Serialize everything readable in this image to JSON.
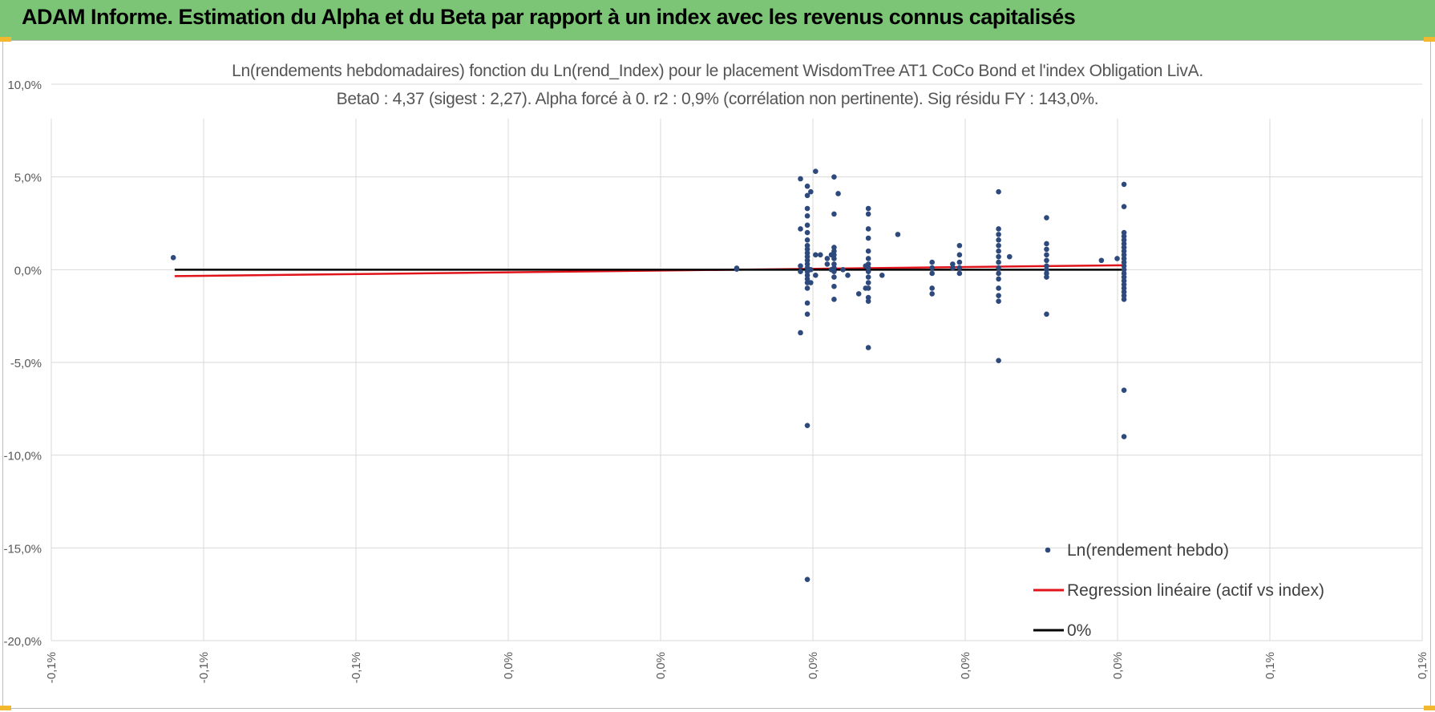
{
  "header": {
    "title": "ADAM Informe. Estimation du Alpha et du Beta par rapport à un index avec les revenus connus capitalisés"
  },
  "colors": {
    "banner": "#7cc576",
    "points": "#2e4a7d",
    "regression": "#e0141a",
    "zero_line": "#000000",
    "grid": "#d9d9d9",
    "accent": "#f2b830"
  },
  "chart_data": {
    "type": "scatter",
    "title": "Ln(rendements hebdomadaires) fonction du Ln(rend_Index) pour le placement WisdomTree AT1  CoCo Bond  et l'index Obligation LivA.",
    "subtitle": "Beta0 : 4,37  (sigest : 2,27). Alpha forcé à 0. r2 : 0,9% (corrélation non pertinente). Sig résidu FY : 143,0%.",
    "xlabel": "",
    "ylabel": "",
    "xlim": [
      -0.001,
      0.001
    ],
    "ylim": [
      -0.2,
      0.1
    ],
    "grid": true,
    "legend_position": "bottom-right",
    "x_tick_labels": [
      "-0,1%",
      "-0,1%",
      "-0,1%",
      "0,0%",
      "0,0%",
      "0,0%",
      "0,0%",
      "0,0%",
      "0,1%",
      "0,1%"
    ],
    "y_tick_labels": [
      "10,0%",
      "5,0%",
      "0,0%",
      "-5,0%",
      "-10,0%",
      "-15,0%",
      "-20,0%"
    ],
    "series": [
      {
        "name": "Ln(rendement hebdo)",
        "type": "scatter",
        "points": [
          [
            -0.000822,
            0.0065
          ],
          [
            0.0,
            0.0008
          ],
          [
            0.0,
            0.0003
          ],
          [
            9.3e-05,
            0.049
          ],
          [
            9.3e-05,
            0.022
          ],
          [
            9.3e-05,
            0.002
          ],
          [
            9.3e-05,
            -0.001
          ],
          [
            9.3e-05,
            -0.034
          ],
          [
            0.000103,
            0.045
          ],
          [
            0.000103,
            0.04
          ],
          [
            0.000103,
            0.033
          ],
          [
            0.000103,
            0.029
          ],
          [
            0.000103,
            0.024
          ],
          [
            0.000103,
            0.02
          ],
          [
            0.000103,
            0.016
          ],
          [
            0.000103,
            0.013
          ],
          [
            0.000103,
            0.011
          ],
          [
            0.000103,
            0.009
          ],
          [
            0.000103,
            0.007
          ],
          [
            0.000103,
            0.005
          ],
          [
            0.000103,
            0.003
          ],
          [
            0.000103,
            0.001
          ],
          [
            0.000103,
            -0.001
          ],
          [
            0.000103,
            -0.003
          ],
          [
            0.000103,
            -0.005
          ],
          [
            0.000103,
            -0.007
          ],
          [
            0.000103,
            -0.01
          ],
          [
            0.000103,
            -0.018
          ],
          [
            0.000103,
            -0.024
          ],
          [
            0.000103,
            -0.084
          ],
          [
            0.000103,
            -0.167
          ],
          [
            0.000108,
            0.042
          ],
          [
            0.000108,
            0.0
          ],
          [
            0.000108,
            -0.007
          ],
          [
            0.000115,
            0.053
          ],
          [
            0.000115,
            0.008
          ],
          [
            0.000115,
            -0.003
          ],
          [
            0.000122,
            0.008
          ],
          [
            0.000132,
            0.006
          ],
          [
            0.000132,
            0.003
          ],
          [
            0.000138,
            0.008
          ],
          [
            0.000138,
            0.0
          ],
          [
            0.000142,
            0.05
          ],
          [
            0.000142,
            0.03
          ],
          [
            0.000142,
            0.012
          ],
          [
            0.000142,
            0.01
          ],
          [
            0.000142,
            0.008
          ],
          [
            0.000142,
            0.006
          ],
          [
            0.000142,
            0.003
          ],
          [
            0.000142,
            0.001
          ],
          [
            0.000142,
            -0.001
          ],
          [
            0.000142,
            -0.004
          ],
          [
            0.000142,
            -0.009
          ],
          [
            0.000142,
            -0.016
          ],
          [
            0.000148,
            0.041
          ],
          [
            0.000155,
            0.0
          ],
          [
            0.000162,
            -0.003
          ],
          [
            0.000178,
            -0.013
          ],
          [
            0.000188,
            -0.01
          ],
          [
            0.000188,
            0.002
          ],
          [
            0.000192,
            0.033
          ],
          [
            0.000192,
            0.03
          ],
          [
            0.000192,
            0.022
          ],
          [
            0.000192,
            0.017
          ],
          [
            0.000192,
            0.01
          ],
          [
            0.000192,
            0.006
          ],
          [
            0.000192,
            0.003
          ],
          [
            0.000192,
            0.001
          ],
          [
            0.000192,
            -0.001
          ],
          [
            0.000192,
            -0.004
          ],
          [
            0.000192,
            -0.007
          ],
          [
            0.000192,
            -0.01
          ],
          [
            0.000192,
            -0.015
          ],
          [
            0.000192,
            -0.017
          ],
          [
            0.000192,
            -0.042
          ],
          [
            0.000212,
            -0.003
          ],
          [
            0.000235,
            0.019
          ],
          [
            0.000285,
            0.004
          ],
          [
            0.000285,
            0.001
          ],
          [
            0.000285,
            -0.002
          ],
          [
            0.000285,
            -0.01
          ],
          [
            0.000285,
            -0.013
          ],
          [
            0.000315,
            0.003
          ],
          [
            0.000315,
            0.001
          ],
          [
            0.000325,
            0.013
          ],
          [
            0.000325,
            0.008
          ],
          [
            0.000325,
            0.004
          ],
          [
            0.000325,
            0.001
          ],
          [
            0.000325,
            -0.002
          ],
          [
            0.000382,
            0.042
          ],
          [
            0.000382,
            0.022
          ],
          [
            0.000382,
            0.019
          ],
          [
            0.000382,
            0.016
          ],
          [
            0.000382,
            0.013
          ],
          [
            0.000382,
            0.01
          ],
          [
            0.000382,
            0.007
          ],
          [
            0.000382,
            0.004
          ],
          [
            0.000382,
            0.001
          ],
          [
            0.000382,
            -0.002
          ],
          [
            0.000382,
            -0.005
          ],
          [
            0.000382,
            -0.01
          ],
          [
            0.000382,
            -0.014
          ],
          [
            0.000382,
            -0.017
          ],
          [
            0.000382,
            -0.049
          ],
          [
            0.000398,
            0.007
          ],
          [
            0.000452,
            0.028
          ],
          [
            0.000452,
            0.014
          ],
          [
            0.000452,
            0.011
          ],
          [
            0.000452,
            0.008
          ],
          [
            0.000452,
            0.005
          ],
          [
            0.000452,
            0.002
          ],
          [
            0.000452,
            0.0
          ],
          [
            0.000452,
            -0.002
          ],
          [
            0.000452,
            -0.004
          ],
          [
            0.000452,
            -0.024
          ],
          [
            0.000532,
            0.005
          ],
          [
            0.000555,
            0.006
          ],
          [
            0.000565,
            0.046
          ],
          [
            0.000565,
            0.034
          ],
          [
            0.000565,
            0.02
          ],
          [
            0.000565,
            0.018
          ],
          [
            0.000565,
            0.016
          ],
          [
            0.000565,
            0.014
          ],
          [
            0.000565,
            0.012
          ],
          [
            0.000565,
            0.01
          ],
          [
            0.000565,
            0.008
          ],
          [
            0.000565,
            0.006
          ],
          [
            0.000565,
            0.004
          ],
          [
            0.000565,
            0.002
          ],
          [
            0.000565,
            0.0
          ],
          [
            0.000565,
            -0.002
          ],
          [
            0.000565,
            -0.004
          ],
          [
            0.000565,
            -0.006
          ],
          [
            0.000565,
            -0.008
          ],
          [
            0.000565,
            -0.01
          ],
          [
            0.000565,
            -0.012
          ],
          [
            0.000565,
            -0.014
          ],
          [
            0.000565,
            -0.016
          ],
          [
            0.000565,
            -0.065
          ],
          [
            0.000565,
            -0.09
          ]
        ]
      },
      {
        "name": "Regression linéaire (actif vs index)",
        "type": "line",
        "x": [
          -0.00082,
          0.000565
        ],
        "y": [
          -0.0035,
          0.0024
        ]
      },
      {
        "name": "0%",
        "type": "line",
        "x": [
          -0.00082,
          0.000565
        ],
        "y": [
          0.0,
          0.0
        ]
      }
    ]
  }
}
